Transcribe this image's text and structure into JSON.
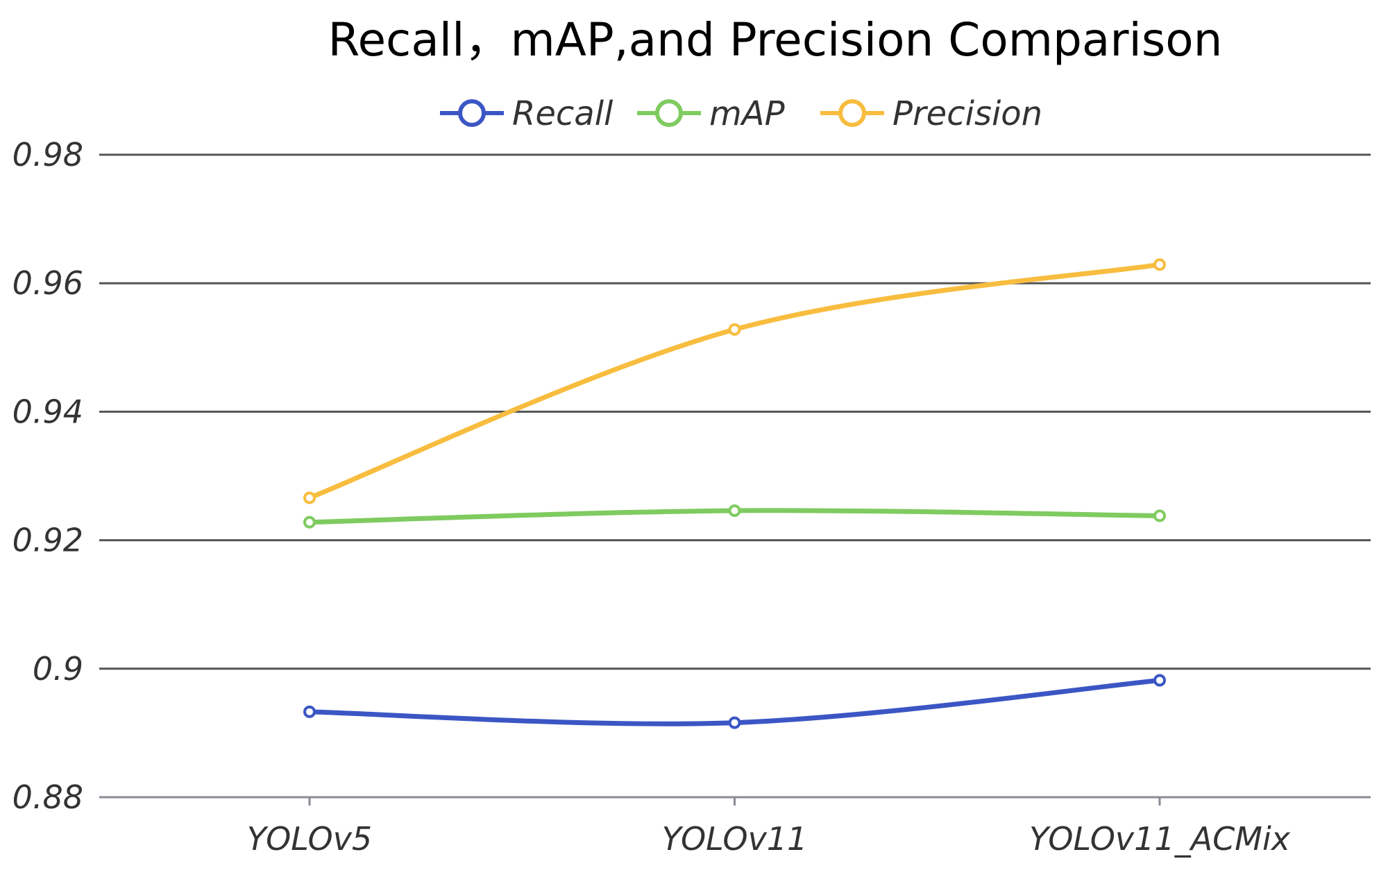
{
  "chart_data": {
    "type": "line",
    "title": "Recall，mAP,and Precision Comparison",
    "xlabel": "",
    "ylabel": "",
    "categories": [
      "YOLOv5",
      "YOLOv11",
      "YOLOv11_ACMix"
    ],
    "ylim": [
      0.88,
      0.98
    ],
    "yticks": [
      0.88,
      0.9,
      0.92,
      0.94,
      0.96,
      0.98
    ],
    "ytick_labels": [
      "0.88",
      "0.9",
      "0.92",
      "0.94",
      "0.96",
      "0.98"
    ],
    "grid": true,
    "legend_position": "top-center",
    "series": [
      {
        "name": "Recall",
        "color": "#3b56c4",
        "values": [
          0.8933,
          0.8916,
          0.8982
        ]
      },
      {
        "name": "mAP",
        "color": "#7fcb60",
        "values": [
          0.9228,
          0.9246,
          0.9238
        ]
      },
      {
        "name": "Precision",
        "color": "#f8bd3f",
        "values": [
          0.9266,
          0.9528,
          0.9629
        ]
      }
    ]
  }
}
